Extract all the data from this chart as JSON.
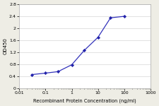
{
  "x": [
    0.03,
    0.1,
    0.3,
    1,
    3,
    10,
    30,
    100
  ],
  "y": [
    0.45,
    0.5,
    0.55,
    0.78,
    1.26,
    1.7,
    2.35,
    2.4
  ],
  "line_color": "#3333bb",
  "marker_color": "#2222aa",
  "marker": "D",
  "marker_size": 2.2,
  "line_width": 0.9,
  "xlabel": "Recombinant Protein Concentration (ng/ml)",
  "ylabel": "OD450",
  "xlim": [
    0.01,
    1000
  ],
  "ylim": [
    0,
    2.8
  ],
  "yticks": [
    0,
    0.4,
    0.8,
    1.2,
    1.6,
    2.0,
    2.4,
    2.8
  ],
  "ytick_labels": [
    "0",
    "0.4",
    "0.8",
    "1.2",
    "1.6",
    "2",
    "2.4",
    "2.8"
  ],
  "xtick_labels": [
    "0.01",
    "0.1",
    "1",
    "10",
    "100",
    "1000"
  ],
  "xlabel_fontsize": 4.8,
  "ylabel_fontsize": 5.0,
  "tick_fontsize": 4.5,
  "background_color": "#eeede5",
  "plot_bg_color": "#ffffff",
  "grid_color": "#cccccc"
}
